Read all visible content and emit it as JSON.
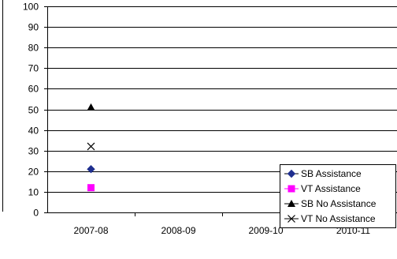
{
  "chart_data": {
    "type": "scatter",
    "categories": [
      "2007-08",
      "2008-09",
      "2009-10",
      "2010-11"
    ],
    "ylim": [
      0,
      100
    ],
    "yticks": [
      0,
      10,
      20,
      30,
      40,
      50,
      60,
      70,
      80,
      90,
      100
    ],
    "grid": true,
    "legend_position": "bottom-right",
    "series": [
      {
        "name": "SB Assistance",
        "marker": "diamond",
        "color": "#1f2f8f",
        "values": [
          21,
          null,
          null,
          null
        ]
      },
      {
        "name": "VT Assistance",
        "marker": "square",
        "color": "#ff00ff",
        "values": [
          12,
          null,
          null,
          null
        ]
      },
      {
        "name": "SB No Assistance",
        "marker": "triangle",
        "color": "#000000",
        "values": [
          51,
          null,
          null,
          null
        ]
      },
      {
        "name": "VT No Assistance",
        "marker": "x",
        "color": "#000000",
        "values": [
          32,
          null,
          null,
          null
        ]
      }
    ],
    "title": "",
    "xlabel": "",
    "ylabel": ""
  }
}
